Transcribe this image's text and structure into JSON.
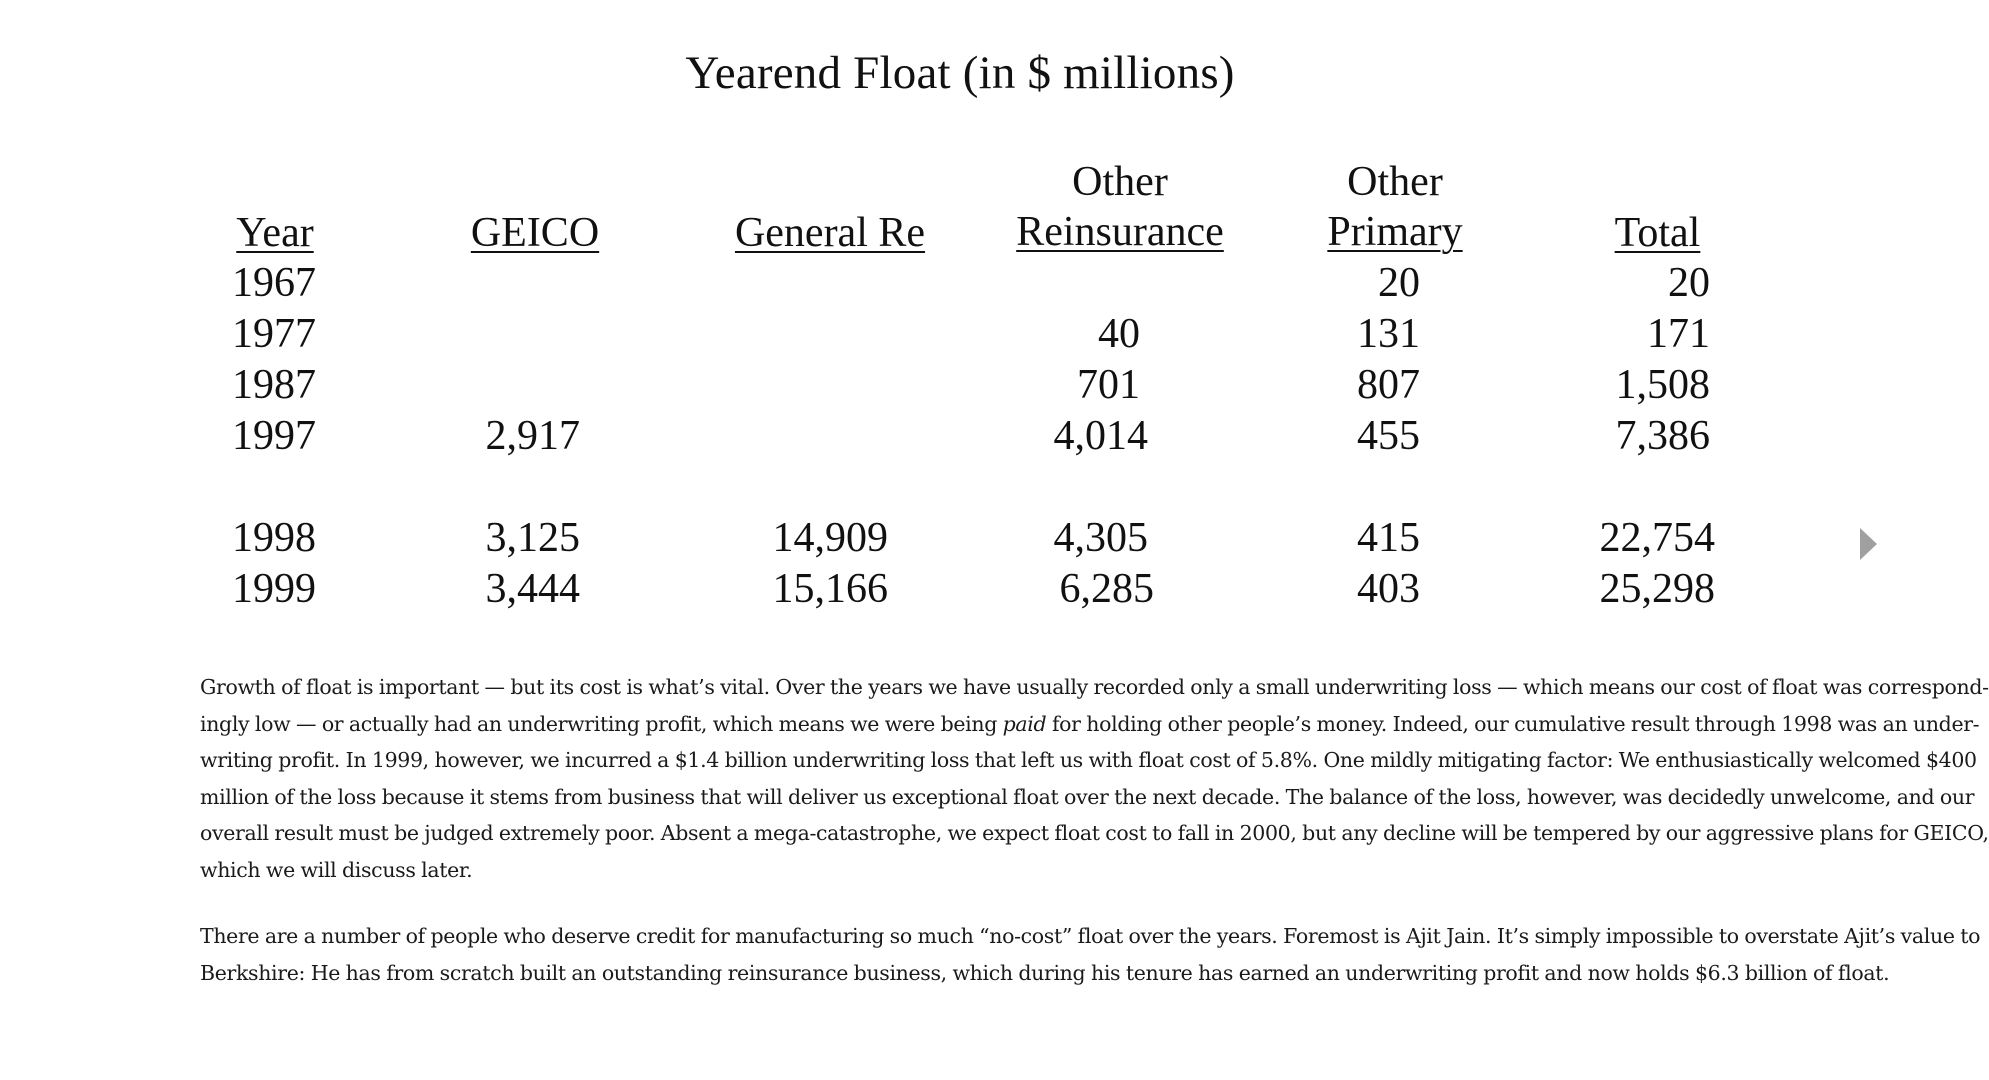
{
  "table": {
    "title": "Yearend Float (in $ millions)",
    "headers": {
      "year": "Year",
      "geico": "GEICO",
      "general_re": "General Re",
      "other_reinsurance_top": "Other",
      "other_reinsurance_bottom": "Reinsurance",
      "other_primary_top": "Other",
      "other_primary_bottom": "Primary",
      "total": "Total"
    },
    "rows": [
      {
        "year": "1967",
        "geico": "",
        "general_re": "",
        "other_reinsurance": "",
        "other_primary": "20",
        "total": "20"
      },
      {
        "year": "1977",
        "geico": "",
        "general_re": "",
        "other_reinsurance": "40",
        "other_primary": "131",
        "total": "171"
      },
      {
        "year": "1987",
        "geico": "",
        "general_re": "",
        "other_reinsurance": "701",
        "other_primary": "807",
        "total": "1,508"
      },
      {
        "year": "1997",
        "geico": "2,917",
        "general_re": "",
        "other_reinsurance": "4,014",
        "other_primary": "455",
        "total": "7,386"
      },
      {
        "year": "1998",
        "geico": "3,125",
        "general_re": "14,909",
        "other_reinsurance": "4,305",
        "other_primary": "415",
        "total": "22,754"
      },
      {
        "year": "1999",
        "geico": "3,444",
        "general_re": "15,166",
        "other_reinsurance": "6,285",
        "other_primary": "403",
        "total": "25,298"
      }
    ]
  },
  "paragraphs": {
    "p1": {
      "l1": "Growth of float is important — but its cost is what’s vital. Over the years we have usually recorded only a small underwriting loss — which means our cost of float was correspond-",
      "l2_before": "ingly low — or actually had an underwriting profit, which means we were being ",
      "l2_em": "paid",
      "l2_after": " for holding other people’s money. Indeed, our cumulative result through 1998 was an under-",
      "l3": "writing profit. In 1999, however, we incurred a $1.4 billion underwriting loss that left us with float cost of 5.8%. One mildly mitigating factor: We enthusiastically welcomed $400",
      "l4": "million of the loss because it stems from business that will deliver us exceptional float over the next decade. The balance of the loss, however, was decidedly unwelcome, and our",
      "l5": "overall result must be judged extremely poor. Absent a mega-catastrophe, we expect float cost to fall in 2000, but any decline will be tempered by our aggressive plans for GEICO,",
      "l6": "which we will discuss later."
    },
    "p2": {
      "l1": "There are a number of people who deserve credit for manufacturing so much “no-cost” float over the years. Foremost is Ajit Jain. It’s simply impossible to overstate Ajit’s value to",
      "l2": "Berkshire: He has from scratch built an outstanding reinsurance business, which during his tenure has earned an underwriting profit and now holds $6.3 billion of float."
    }
  },
  "navigation": {
    "next_icon": "triangle-right-icon",
    "arrow_color": "#a0a0a0"
  }
}
